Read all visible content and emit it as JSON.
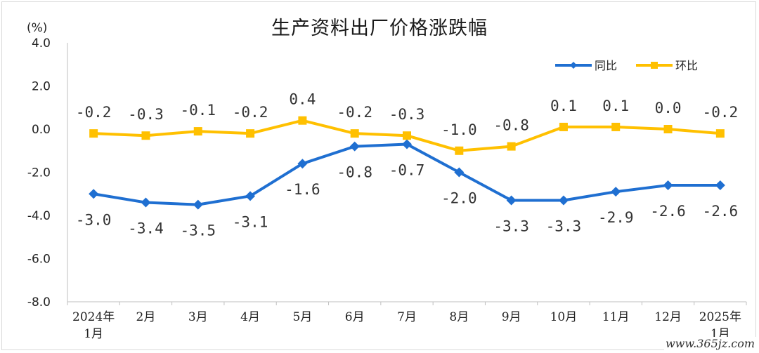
{
  "chart_data": {
    "type": "line",
    "title": "生产资料出厂价格涨跌幅",
    "ylabel": "(%)",
    "xlabel": "",
    "ylim": [
      -8.0,
      4.0
    ],
    "yticks": [
      "4.0",
      "2.0",
      "0.0",
      "-2.0",
      "-4.0",
      "-6.0",
      "-8.0"
    ],
    "categories": [
      [
        "2024年",
        "1月"
      ],
      [
        "2月"
      ],
      [
        "3月"
      ],
      [
        "4月"
      ],
      [
        "5月"
      ],
      [
        "6月"
      ],
      [
        "7月"
      ],
      [
        "8月"
      ],
      [
        "9月"
      ],
      [
        "10月"
      ],
      [
        "11月"
      ],
      [
        "12月"
      ],
      [
        "2025年",
        "1月"
      ]
    ],
    "legend_position": "top-right",
    "series": [
      {
        "name": "同比",
        "color": "#1f6fd1",
        "marker": "diamond",
        "values": [
          -3.0,
          -3.4,
          -3.5,
          -3.1,
          -1.6,
          -0.8,
          -0.7,
          -2.0,
          -3.3,
          -3.3,
          -2.9,
          -2.6,
          -2.6
        ],
        "labels": [
          "-3.0",
          "-3.4",
          "-3.5",
          "-3.1",
          "-1.6",
          "-0.8",
          "-0.7",
          "-2.0",
          "-3.3",
          "-3.3",
          "-2.9",
          "-2.6",
          "-2.6"
        ]
      },
      {
        "name": "环比",
        "color": "#ffc000",
        "marker": "square",
        "values": [
          -0.2,
          -0.3,
          -0.1,
          -0.2,
          0.4,
          -0.2,
          -0.3,
          -1.0,
          -0.8,
          0.1,
          0.1,
          0.0,
          -0.2
        ],
        "labels": [
          "-0.2",
          "-0.3",
          "-0.1",
          "-0.2",
          "0.4",
          "-0.2",
          "-0.3",
          "-1.0",
          "-0.8",
          "0.1",
          "0.1",
          "0.0",
          "-0.2"
        ]
      }
    ]
  },
  "watermark": "www.365jz.com"
}
